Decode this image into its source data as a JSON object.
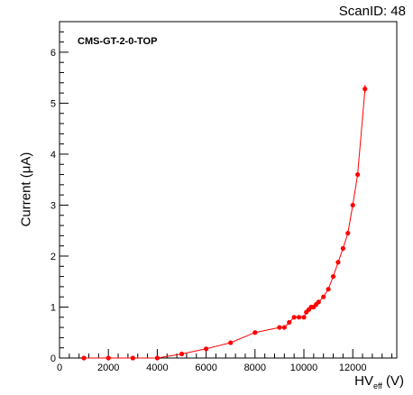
{
  "header": {
    "scan_id": "ScanID: 48"
  },
  "chart_data": {
    "type": "scatter",
    "title": "CMS-GT-2-0-TOP",
    "xlabel_main": "HV",
    "xlabel_sub": "eff",
    "xlabel_unit": "(V)",
    "ylabel": "Current (μA)",
    "xlim": [
      0,
      13800
    ],
    "ylim": [
      0,
      6.6
    ],
    "xticks": [
      0,
      2000,
      4000,
      6000,
      8000,
      10000,
      12000
    ],
    "yticks": [
      0,
      1,
      2,
      3,
      4,
      5,
      6
    ],
    "marker_color": "#ff0000",
    "line_color": "#ff0000",
    "series": [
      {
        "x": [
          1000,
          2000,
          3000,
          4000,
          5000,
          6000,
          7000,
          8000,
          9000,
          9200,
          9400,
          9600,
          9800,
          10000,
          10100,
          10200,
          10300,
          10400,
          10500,
          10600,
          10800,
          11000,
          11200,
          11400,
          11600,
          11800,
          12000,
          12200,
          12500
        ],
        "y": [
          0.0,
          0.0,
          0.0,
          0.0,
          0.08,
          0.18,
          0.3,
          0.5,
          0.6,
          0.6,
          0.7,
          0.8,
          0.8,
          0.8,
          0.9,
          0.95,
          1.0,
          1.0,
          1.05,
          1.1,
          1.2,
          1.35,
          1.6,
          1.88,
          2.15,
          2.45,
          3.0,
          3.6,
          5.28
        ]
      }
    ]
  }
}
